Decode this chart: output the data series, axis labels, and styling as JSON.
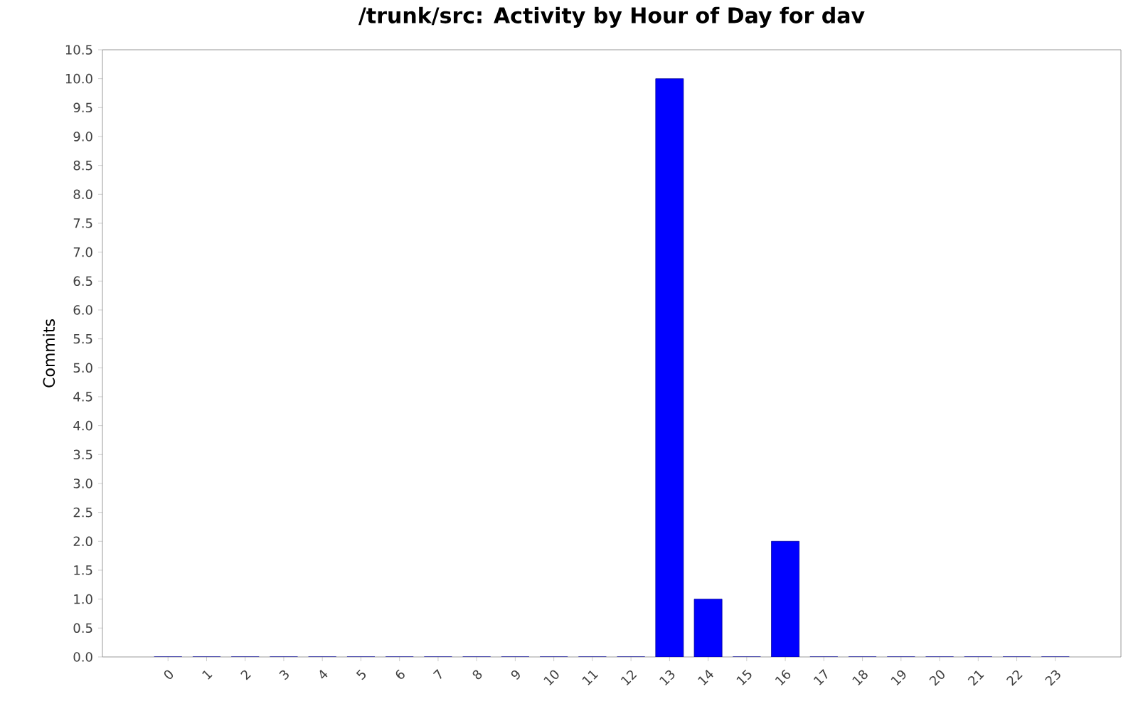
{
  "chart_data": {
    "type": "bar",
    "title": "/trunk/src: Activity by Hour of Day for dav",
    "ylabel": "Commits",
    "categories": [
      "0",
      "1",
      "2",
      "3",
      "4",
      "5",
      "6",
      "7",
      "8",
      "9",
      "10",
      "11",
      "12",
      "13",
      "14",
      "15",
      "16",
      "17",
      "18",
      "19",
      "20",
      "21",
      "22",
      "23"
    ],
    "values": [
      0,
      0,
      0,
      0,
      0,
      0,
      0,
      0,
      0,
      0,
      0,
      0,
      0,
      10,
      1,
      0,
      2,
      0,
      0,
      0,
      0,
      0,
      0,
      0
    ],
    "color": "#0000ff",
    "ylim": [
      0,
      10.5
    ],
    "yticks": [
      {
        "value": 0,
        "label": "0.0"
      },
      {
        "value": 0.5,
        "label": "0.5"
      },
      {
        "value": 1,
        "label": "1.0"
      },
      {
        "value": 1.5,
        "label": "1.5"
      },
      {
        "value": 2,
        "label": "2.0"
      },
      {
        "value": 2.5,
        "label": "2.5"
      },
      {
        "value": 3,
        "label": "3.0"
      },
      {
        "value": 3.5,
        "label": "3.5"
      },
      {
        "value": 4,
        "label": "4.0"
      },
      {
        "value": 4.5,
        "label": "4.5"
      },
      {
        "value": 5,
        "label": "5.0"
      },
      {
        "value": 5.5,
        "label": "5.5"
      },
      {
        "value": 6,
        "label": "6.0"
      },
      {
        "value": 6.5,
        "label": "6.5"
      },
      {
        "value": 7,
        "label": "7.0"
      },
      {
        "value": 7.5,
        "label": "7.5"
      },
      {
        "value": 8,
        "label": "8.0"
      },
      {
        "value": 8.5,
        "label": "8.5"
      },
      {
        "value": 9,
        "label": "9.0"
      },
      {
        "value": 9.5,
        "label": "9.5"
      },
      {
        "value": 10,
        "label": "10.0"
      },
      {
        "value": 10.5,
        "label": "10.5"
      }
    ]
  }
}
